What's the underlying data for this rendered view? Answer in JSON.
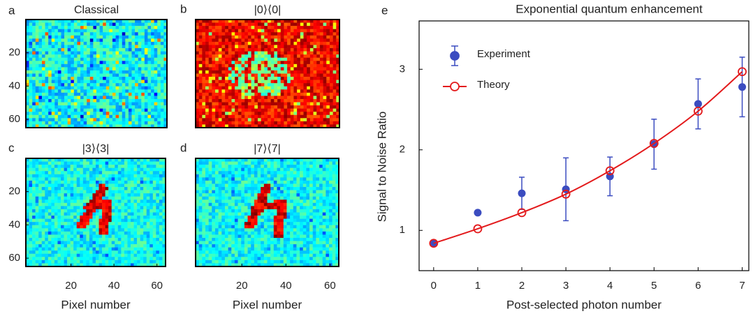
{
  "chart_data": [
    {
      "type": "heatmap",
      "panel_label": "a",
      "title": "Classical",
      "ylim": [
        0,
        65
      ],
      "yticks": [
        20,
        40,
        60
      ]
    },
    {
      "type": "heatmap",
      "panel_label": "b",
      "title": "|0⟩⟨0|"
    },
    {
      "type": "heatmap",
      "panel_label": "c",
      "title": "|3⟩⟨3|",
      "ylim": [
        0,
        65
      ],
      "yticks": [
        20,
        40,
        60
      ],
      "xlim": [
        -1,
        64
      ],
      "xticks": [
        20,
        40,
        60
      ],
      "xlabel": "Pixel number"
    },
    {
      "type": "heatmap",
      "panel_label": "d",
      "title": "|7⟩⟨7|",
      "xlim": [
        -1,
        64
      ],
      "xticks": [
        20,
        40,
        60
      ],
      "xlabel": "Pixel number"
    },
    {
      "type": "line",
      "panel_label": "e",
      "title": "Exponential quantum enhancement",
      "xlabel": "Post-selected photon number",
      "ylabel": "Signal to Noise Ratio",
      "x": [
        0,
        1,
        2,
        3,
        4,
        5,
        6,
        7
      ],
      "xlim": [
        -0.33,
        7.15
      ],
      "xticks": [
        0,
        1,
        2,
        3,
        4,
        5,
        6,
        7
      ],
      "ylim": [
        0.5,
        3.6
      ],
      "yticks": [
        1,
        2,
        3
      ],
      "legend": "upper left",
      "series": [
        {
          "name": "Experiment",
          "color": "#3b4cc0",
          "marker": "filled",
          "values": [
            0.84,
            1.22,
            1.46,
            1.51,
            1.67,
            2.07,
            2.57,
            2.78
          ],
          "errors": [
            null,
            null,
            0.2,
            0.39,
            0.24,
            0.31,
            0.31,
            0.37
          ]
        },
        {
          "name": "Theory",
          "color": "#e31a1c",
          "marker": "open",
          "values": [
            0.84,
            1.02,
            1.22,
            1.45,
            1.74,
            2.08,
            2.48,
            2.97
          ]
        }
      ]
    }
  ]
}
